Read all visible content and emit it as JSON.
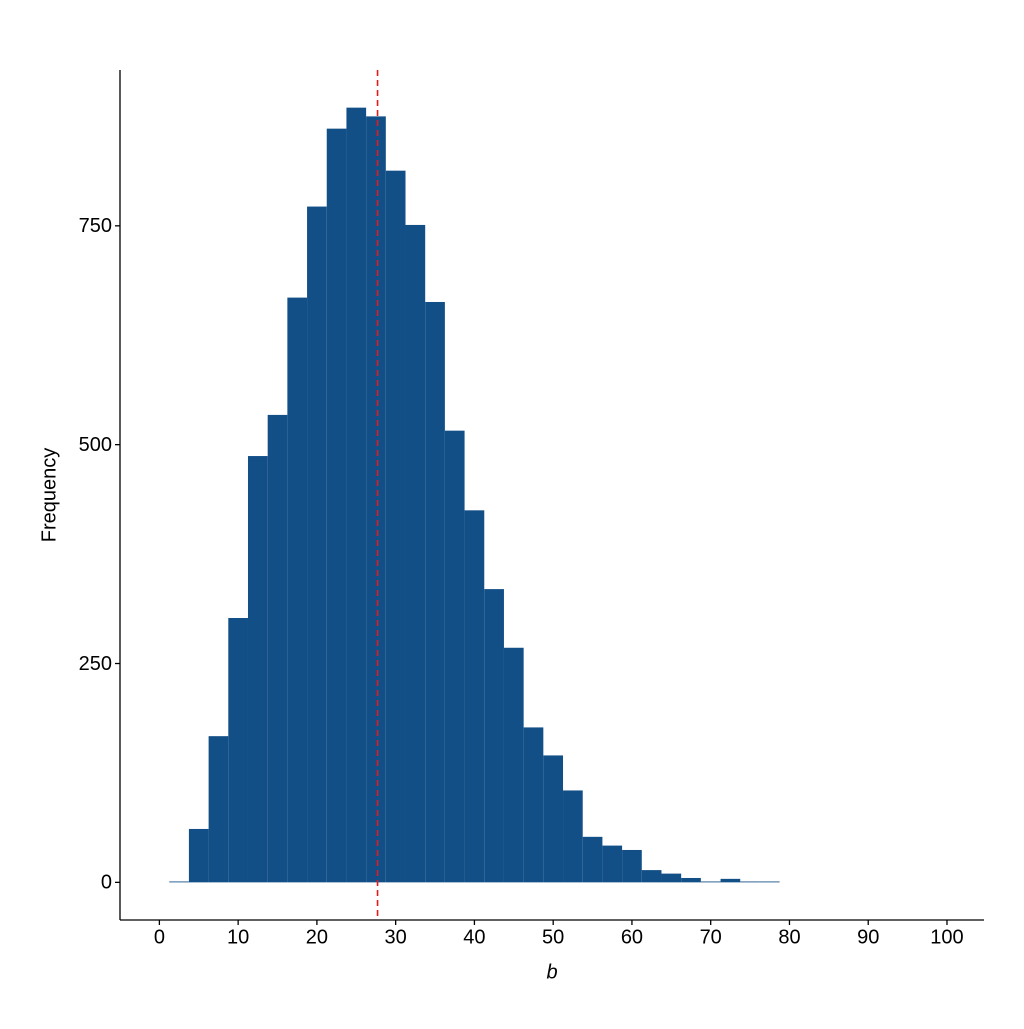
{
  "chart_data": {
    "type": "histogram",
    "x_label": "b",
    "y_label": "Frequency",
    "bins": [
      1.25,
      3.75,
      6.25,
      8.75,
      11.25,
      13.75,
      16.25,
      18.75,
      21.25,
      23.75,
      26.25,
      28.75,
      31.25,
      33.75,
      36.25,
      38.75,
      41.25,
      43.75,
      46.25,
      48.75,
      51.25,
      53.75,
      56.25,
      58.75,
      61.25,
      63.75,
      66.25,
      68.75,
      71.25,
      73.75,
      76.25,
      78.75
    ],
    "counts": [
      1,
      61,
      167,
      302,
      487,
      534,
      668,
      772,
      861,
      885,
      875,
      813,
      751,
      663,
      516,
      425,
      335,
      268,
      177,
      145,
      105,
      52,
      42,
      37,
      14,
      10,
      5,
      1,
      4,
      1,
      1
    ],
    "color": "#134f87",
    "vline": {
      "x": 27.7,
      "color": "#e41a1c",
      "dashed": true
    },
    "xlim": [
      -5,
      104.7
    ],
    "ylim": [
      -43,
      928
    ],
    "xticks": [
      0,
      10,
      20,
      30,
      40,
      50,
      60,
      70,
      80,
      90,
      100
    ],
    "yticks": [
      0,
      250,
      500,
      750
    ],
    "grid": false
  }
}
